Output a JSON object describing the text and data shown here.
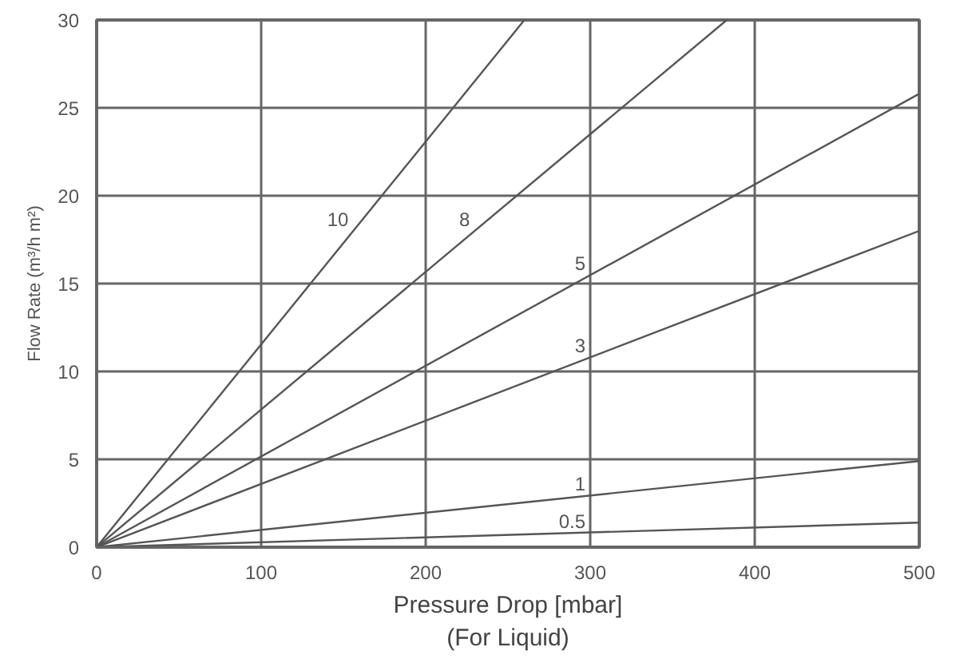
{
  "chart_data": {
    "type": "line",
    "xlabel": "Pressure Drop [mbar]\n(For Liquid)",
    "ylabel": "Flow Rate (m³/h m²)",
    "series": [
      {
        "name": "10",
        "x": [
          0,
          260
        ],
        "values": [
          0,
          30
        ],
        "color": "#555555"
      },
      {
        "name": "8",
        "x": [
          0,
          383
        ],
        "values": [
          0,
          30
        ],
        "color": "#555555"
      },
      {
        "name": "5",
        "x": [
          0,
          500
        ],
        "values": [
          0,
          25.8
        ],
        "color": "#555555"
      },
      {
        "name": "3",
        "x": [
          0,
          500
        ],
        "values": [
          0,
          18
        ],
        "color": "#555555"
      },
      {
        "name": "1",
        "x": [
          0,
          500
        ],
        "values": [
          0,
          4.9
        ],
        "color": "#555555"
      },
      {
        "name": "0.5",
        "x": [
          0,
          500
        ],
        "values": [
          0,
          1.4
        ],
        "color": "#555555"
      }
    ],
    "xlim": [
      0,
      500
    ],
    "ylim": [
      0,
      30
    ],
    "xticks": [
      0,
      100,
      200,
      300,
      400,
      500
    ],
    "yticks": [
      0,
      5,
      10,
      15,
      20,
      25,
      30
    ],
    "grid": true
  }
}
